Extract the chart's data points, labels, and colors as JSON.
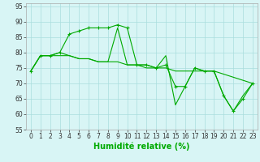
{
  "series": [
    {
      "x": [
        0,
        1,
        2,
        3,
        4,
        5,
        6,
        7,
        8,
        9,
        10,
        11,
        12,
        13,
        14,
        15,
        16,
        17,
        18,
        19,
        20,
        21,
        22,
        23
      ],
      "y": [
        74,
        79,
        79,
        80,
        86,
        87,
        88,
        88,
        88,
        89,
        88,
        76,
        76,
        75,
        76,
        69,
        69,
        75,
        74,
        74,
        66,
        61,
        65,
        70
      ],
      "marker": "+"
    },
    {
      "x": [
        0,
        1,
        2,
        3,
        4,
        5,
        6,
        7,
        8,
        9,
        10,
        11,
        12,
        13,
        14,
        15,
        16,
        17,
        18,
        19,
        20,
        21,
        22,
        23
      ],
      "y": [
        74,
        79,
        79,
        80,
        79,
        78,
        78,
        77,
        77,
        77,
        76,
        76,
        76,
        75,
        75,
        74,
        74,
        74,
        74,
        74,
        73,
        72,
        71,
        70
      ],
      "marker": null
    },
    {
      "x": [
        0,
        1,
        2,
        3,
        4,
        5,
        6,
        7,
        8,
        9,
        10,
        11,
        12,
        13,
        14,
        15,
        16,
        17,
        18,
        19,
        20,
        21,
        22,
        23
      ],
      "y": [
        74,
        79,
        79,
        79,
        79,
        78,
        78,
        77,
        77,
        88,
        76,
        76,
        75,
        75,
        79,
        63,
        69,
        75,
        74,
        74,
        66,
        61,
        66,
        70
      ],
      "marker": null
    }
  ],
  "line_color": "#00aa00",
  "marker_color": "#00aa00",
  "background_color": "#d8f5f5",
  "grid_color": "#aadddd",
  "xlabel": "Humidité relative (%)",
  "xlabel_color": "#00aa00",
  "xlabel_fontsize": 7,
  "tick_fontsize": 5.5,
  "ylim": [
    55,
    96
  ],
  "yticks": [
    55,
    60,
    65,
    70,
    75,
    80,
    85,
    90,
    95
  ],
  "xlim": [
    -0.5,
    23.5
  ],
  "xticks": [
    0,
    1,
    2,
    3,
    4,
    5,
    6,
    7,
    8,
    9,
    10,
    11,
    12,
    13,
    14,
    15,
    16,
    17,
    18,
    19,
    20,
    21,
    22,
    23
  ]
}
